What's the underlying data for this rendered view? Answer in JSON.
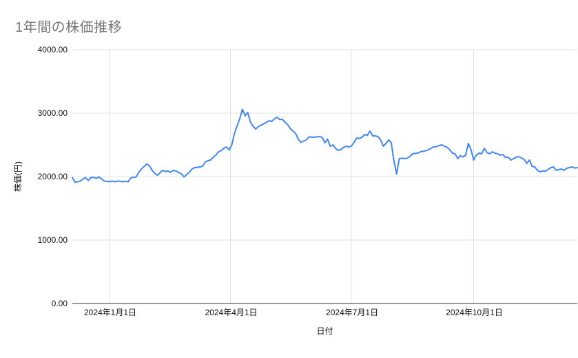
{
  "chart": {
    "title": "1年間の株価推移",
    "x_axis_title": "日付",
    "y_axis_title": "株価(円)",
    "y_tick_labels": [
      "0.00",
      "1000.00",
      "2000.00",
      "3000.00",
      "4000.00"
    ],
    "x_tick_labels": [
      "2024年1月1日",
      "2024年4月1日",
      "2024年7月1日",
      "2024年10月1日"
    ],
    "colors": {
      "line": "#4285f4",
      "gridline": "#e0e0e0",
      "axis_line": "#333333",
      "title_text": "#757575",
      "tick_text": "#111111",
      "axis_title_text": "#111111",
      "background": "#ffffff"
    }
  },
  "chart_data": {
    "type": "line",
    "title": "1年間の株価推移",
    "xlabel": "日付",
    "ylabel": "株価(円)",
    "ylim": [
      0,
      4000
    ],
    "y_ticks": [
      0,
      1000,
      2000,
      3000,
      4000
    ],
    "y_tick_labels": [
      "0.00",
      "1000.00",
      "2000.00",
      "3000.00",
      "4000.00"
    ],
    "x_ticks": [
      "2024-01-01",
      "2024-04-01",
      "2024-07-01",
      "2024-10-01"
    ],
    "x_tick_labels": [
      "2024年1月1日",
      "2024年4月1日",
      "2024年7月1日",
      "2024年10月1日"
    ],
    "grid": true,
    "legend": false,
    "series": [
      {
        "name": "株価",
        "start_date": "2023-12-04",
        "interval_days": 2,
        "values": [
          1985,
          1910,
          1918,
          1929,
          1962,
          1984,
          1940,
          1984,
          1989,
          1973,
          1995,
          1962,
          1929,
          1925,
          1918,
          1929,
          1918,
          1929,
          1925,
          1918,
          1925,
          1918,
          1980,
          1989,
          1995,
          2065,
          2120,
          2160,
          2200,
          2170,
          2100,
          2050,
          2022,
          2060,
          2098,
          2080,
          2087,
          2065,
          2098,
          2087,
          2065,
          2043,
          1995,
          2033,
          2065,
          2120,
          2141,
          2146,
          2152,
          2163,
          2228,
          2250,
          2261,
          2304,
          2337,
          2391,
          2408,
          2446,
          2467,
          2420,
          2500,
          2680,
          2800,
          2913,
          3060,
          2957,
          3010,
          2859,
          2793,
          2750,
          2790,
          2810,
          2830,
          2855,
          2880,
          2870,
          2910,
          2935,
          2900,
          2902,
          2859,
          2820,
          2760,
          2717,
          2680,
          2589,
          2540,
          2560,
          2576,
          2625,
          2622,
          2620,
          2625,
          2630,
          2618,
          2533,
          2590,
          2478,
          2500,
          2446,
          2413,
          2424,
          2460,
          2478,
          2467,
          2480,
          2540,
          2609,
          2600,
          2620,
          2663,
          2650,
          2717,
          2641,
          2641,
          2630,
          2576,
          2478,
          2522,
          2576,
          2533,
          2250,
          2043,
          2283,
          2290,
          2283,
          2290,
          2315,
          2359,
          2365,
          2370,
          2391,
          2397,
          2408,
          2424,
          2446,
          2470,
          2472,
          2489,
          2500,
          2478,
          2460,
          2424,
          2370,
          2359,
          2283,
          2330,
          2310,
          2337,
          2522,
          2424,
          2261,
          2340,
          2370,
          2359,
          2446,
          2380,
          2359,
          2391,
          2370,
          2359,
          2337,
          2348,
          2300,
          2304,
          2261,
          2283,
          2304,
          2315,
          2294,
          2270,
          2207,
          2261,
          2160,
          2152,
          2098,
          2076,
          2087,
          2087,
          2110,
          2140,
          2152,
          2100,
          2109,
          2120,
          2098,
          2130,
          2141,
          2152,
          2135,
          2140
        ]
      }
    ]
  }
}
